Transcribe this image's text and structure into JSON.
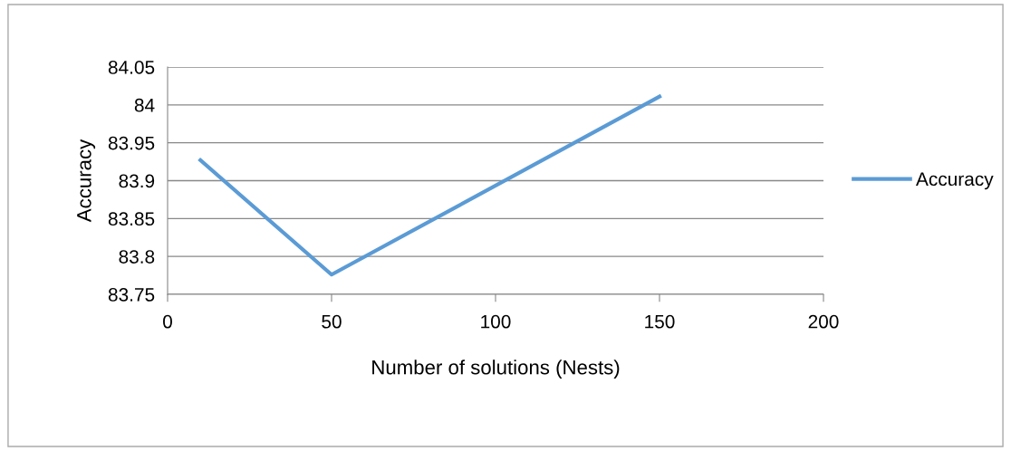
{
  "chart_data": {
    "type": "line",
    "xlabel": "Number of solutions (Nests)",
    "ylabel": "Accuracy",
    "x": [
      10,
      50,
      150
    ],
    "series": [
      {
        "name": "Accuracy",
        "color": "#5b9bd5",
        "values": [
          83.927,
          83.776,
          84.011
        ]
      }
    ],
    "xlim": [
      0,
      200
    ],
    "xticks": [
      0,
      50,
      100,
      150,
      200
    ],
    "ylim": [
      83.75,
      84.05
    ],
    "yticks": [
      {
        "value": 83.75,
        "label": "83.75"
      },
      {
        "value": 83.8,
        "label": "83.8"
      },
      {
        "value": 83.85,
        "label": "83.85"
      },
      {
        "value": 83.9,
        "label": "83.9"
      },
      {
        "value": 83.95,
        "label": "83.95"
      },
      {
        "value": 84,
        "label": "84"
      },
      {
        "value": 84.05,
        "label": "84.05"
      }
    ],
    "grid": "y",
    "legend": "right",
    "marker": "none",
    "line_style": "solid"
  }
}
